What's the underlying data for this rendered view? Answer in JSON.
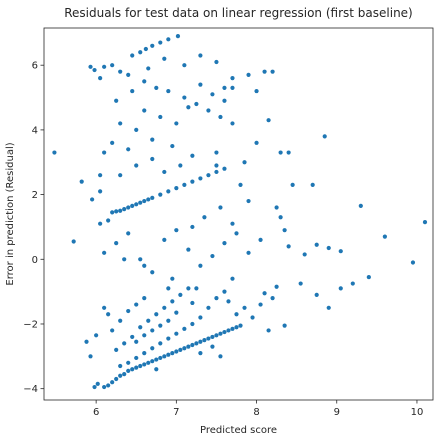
{
  "chart_data": {
    "type": "scatter",
    "title": "Residuals for test data on linear regression (first baseline)",
    "xlabel": "Predicted score",
    "ylabel": "Error in prediction (Residual)",
    "xlim": [
      5.35,
      10.2
    ],
    "ylim": [
      -4.35,
      7.15
    ],
    "xticks": [
      6,
      7,
      8,
      9,
      10
    ],
    "yticks": [
      -4,
      -2,
      0,
      2,
      4,
      6
    ],
    "grid": false,
    "marker_color": "#1f77b4",
    "points": [
      [
        5.48,
        3.3
      ],
      [
        5.72,
        0.55
      ],
      [
        5.82,
        2.4
      ],
      [
        5.88,
        -2.55
      ],
      [
        5.93,
        -3.0
      ],
      [
        5.93,
        5.95
      ],
      [
        5.98,
        5.85
      ],
      [
        6.05,
        5.6
      ],
      [
        6.1,
        3.3
      ],
      [
        6.05,
        2.1
      ],
      [
        5.95,
        1.85
      ],
      [
        6.05,
        1.1
      ],
      [
        6.0,
        -2.35
      ],
      [
        5.98,
        -3.95
      ],
      [
        6.02,
        -3.85
      ],
      [
        6.1,
        -3.95
      ],
      [
        6.15,
        -3.9
      ],
      [
        6.2,
        -3.8
      ],
      [
        6.25,
        -3.7
      ],
      [
        6.3,
        -3.6
      ],
      [
        6.35,
        -3.55
      ],
      [
        6.4,
        -3.45
      ],
      [
        6.45,
        -3.4
      ],
      [
        6.5,
        -3.35
      ],
      [
        6.55,
        -3.3
      ],
      [
        6.6,
        -3.25
      ],
      [
        6.65,
        -3.2
      ],
      [
        6.7,
        -3.15
      ],
      [
        6.75,
        -3.1
      ],
      [
        6.8,
        -3.05
      ],
      [
        6.85,
        -3.0
      ],
      [
        6.9,
        -2.95
      ],
      [
        6.95,
        -2.9
      ],
      [
        7.0,
        -2.85
      ],
      [
        7.05,
        -2.8
      ],
      [
        7.1,
        -2.75
      ],
      [
        7.15,
        -2.7
      ],
      [
        7.2,
        -2.65
      ],
      [
        7.25,
        -2.6
      ],
      [
        7.3,
        -2.55
      ],
      [
        7.35,
        -2.5
      ],
      [
        7.4,
        -2.45
      ],
      [
        7.45,
        -2.4
      ],
      [
        7.5,
        -2.35
      ],
      [
        7.55,
        -2.3
      ],
      [
        7.6,
        -2.25
      ],
      [
        7.65,
        -2.2
      ],
      [
        7.7,
        -2.15
      ],
      [
        7.75,
        -2.1
      ],
      [
        7.8,
        -2.05
      ],
      [
        6.3,
        -3.3
      ],
      [
        6.4,
        -3.2
      ],
      [
        6.5,
        -3.05
      ],
      [
        6.6,
        -2.9
      ],
      [
        6.7,
        -2.75
      ],
      [
        6.8,
        -2.6
      ],
      [
        6.9,
        -2.45
      ],
      [
        7.0,
        -2.3
      ],
      [
        7.1,
        -2.15
      ],
      [
        7.2,
        -2.0
      ],
      [
        6.25,
        -2.8
      ],
      [
        6.35,
        -2.6
      ],
      [
        6.45,
        -2.4
      ],
      [
        6.55,
        -2.1
      ],
      [
        6.65,
        -1.9
      ],
      [
        6.75,
        -1.7
      ],
      [
        6.85,
        -1.5
      ],
      [
        6.95,
        -1.3
      ],
      [
        7.05,
        -1.1
      ],
      [
        7.15,
        -0.9
      ],
      [
        6.2,
        -2.2
      ],
      [
        6.3,
        -1.9
      ],
      [
        6.4,
        -1.6
      ],
      [
        6.5,
        -1.4
      ],
      [
        6.6,
        -1.2
      ],
      [
        7.3,
        -1.8
      ],
      [
        7.4,
        -1.5
      ],
      [
        7.5,
        -1.2
      ],
      [
        7.6,
        -1.0
      ],
      [
        7.7,
        -0.6
      ],
      [
        6.1,
        -1.5
      ],
      [
        6.15,
        -1.7
      ],
      [
        6.7,
        -2.2
      ],
      [
        6.9,
        -1.9
      ],
      [
        7.3,
        -2.9
      ],
      [
        7.55,
        -3.0
      ],
      [
        7.75,
        -1.7
      ],
      [
        7.85,
        -1.5
      ],
      [
        8.05,
        -1.4
      ],
      [
        6.9,
        -0.9
      ],
      [
        6.5,
        -2.55
      ],
      [
        6.6,
        -2.35
      ],
      [
        6.8,
        -2.05
      ],
      [
        7.0,
        -1.65
      ],
      [
        7.2,
        -1.35
      ],
      [
        6.2,
        1.45
      ],
      [
        6.3,
        1.5
      ],
      [
        6.4,
        1.6
      ],
      [
        6.5,
        1.7
      ],
      [
        6.6,
        1.8
      ],
      [
        6.7,
        1.9
      ],
      [
        6.8,
        2.0
      ],
      [
        6.9,
        2.1
      ],
      [
        7.0,
        2.2
      ],
      [
        7.1,
        2.3
      ],
      [
        7.2,
        2.4
      ],
      [
        7.3,
        2.5
      ],
      [
        7.4,
        2.6
      ],
      [
        7.5,
        2.7
      ],
      [
        7.6,
        2.8
      ],
      [
        6.25,
        1.48
      ],
      [
        6.35,
        1.55
      ],
      [
        6.45,
        1.65
      ],
      [
        6.55,
        1.75
      ],
      [
        6.65,
        1.85
      ],
      [
        6.1,
        5.95
      ],
      [
        6.2,
        6.0
      ],
      [
        6.3,
        5.8
      ],
      [
        6.45,
        6.3
      ],
      [
        6.55,
        6.4
      ],
      [
        6.62,
        6.5
      ],
      [
        6.7,
        6.6
      ],
      [
        6.8,
        6.7
      ],
      [
        6.9,
        6.8
      ],
      [
        7.02,
        6.9
      ],
      [
        6.4,
        5.7
      ],
      [
        6.6,
        5.5
      ],
      [
        6.75,
        5.3
      ],
      [
        6.9,
        5.2
      ],
      [
        7.1,
        5.0
      ],
      [
        7.25,
        4.8
      ],
      [
        7.4,
        4.6
      ],
      [
        7.55,
        4.4
      ],
      [
        7.7,
        4.2
      ],
      [
        7.9,
        5.7
      ],
      [
        8.1,
        5.8
      ],
      [
        8.2,
        5.8
      ],
      [
        7.6,
        5.3
      ],
      [
        7.7,
        5.3
      ],
      [
        7.5,
        3.3
      ],
      [
        6.3,
        4.2
      ],
      [
        6.5,
        4.0
      ],
      [
        6.7,
        3.7
      ],
      [
        6.95,
        3.5
      ],
      [
        7.2,
        3.2
      ],
      [
        7.5,
        2.9
      ],
      [
        7.8,
        2.3
      ],
      [
        7.9,
        1.8
      ],
      [
        8.3,
        3.3
      ],
      [
        8.4,
        3.3
      ],
      [
        8.45,
        2.3
      ],
      [
        8.7,
        2.3
      ],
      [
        8.85,
        3.8
      ],
      [
        8.25,
        1.6
      ],
      [
        8.3,
        1.3
      ],
      [
        8.35,
        0.9
      ],
      [
        8.4,
        0.4
      ],
      [
        8.6,
        0.15
      ],
      [
        8.75,
        0.45
      ],
      [
        8.9,
        0.35
      ],
      [
        9.05,
        0.25
      ],
      [
        9.3,
        1.65
      ],
      [
        9.6,
        0.7
      ],
      [
        9.95,
        -0.1
      ],
      [
        10.1,
        1.15
      ],
      [
        9.4,
        -0.55
      ],
      [
        9.2,
        -0.75
      ],
      [
        9.05,
        -0.9
      ],
      [
        8.9,
        -1.5
      ],
      [
        8.75,
        -1.1
      ],
      [
        8.55,
        -0.75
      ],
      [
        8.25,
        -0.85
      ],
      [
        8.1,
        -1.05
      ],
      [
        7.95,
        -1.8
      ],
      [
        8.2,
        -1.2
      ],
      [
        6.1,
        0.2
      ],
      [
        6.25,
        0.5
      ],
      [
        6.4,
        0.8
      ],
      [
        6.55,
        0.0
      ],
      [
        6.7,
        -0.4
      ],
      [
        6.85,
        0.6
      ],
      [
        7.0,
        0.9
      ],
      [
        7.15,
        0.3
      ],
      [
        7.3,
        -0.2
      ],
      [
        7.45,
        0.1
      ],
      [
        7.6,
        0.5
      ],
      [
        7.75,
        0.8
      ],
      [
        7.9,
        0.2
      ],
      [
        8.05,
        0.6
      ],
      [
        6.3,
        2.6
      ],
      [
        6.5,
        2.9
      ],
      [
        6.7,
        3.1
      ],
      [
        6.85,
        2.7
      ],
      [
        7.05,
        2.9
      ],
      [
        7.2,
        1.0
      ],
      [
        7.35,
        1.3
      ],
      [
        7.55,
        1.6
      ],
      [
        7.7,
        1.1
      ],
      [
        6.2,
        3.6
      ],
      [
        6.4,
        3.4
      ],
      [
        6.6,
        4.6
      ],
      [
        6.8,
        4.4
      ],
      [
        7.0,
        4.2
      ],
      [
        7.15,
        4.7
      ],
      [
        7.3,
        5.4
      ],
      [
        7.45,
        5.1
      ],
      [
        7.6,
        4.9
      ],
      [
        6.25,
        4.9
      ],
      [
        6.45,
        5.2
      ],
      [
        6.65,
        5.9
      ],
      [
        6.85,
        6.2
      ],
      [
        7.1,
        6.0
      ],
      [
        7.3,
        6.3
      ],
      [
        7.5,
        6.1
      ],
      [
        7.7,
        5.6
      ],
      [
        8.0,
        5.2
      ],
      [
        8.15,
        4.3
      ],
      [
        8.0,
        3.6
      ],
      [
        7.85,
        3.0
      ],
      [
        6.05,
        2.6
      ],
      [
        6.15,
        1.2
      ],
      [
        6.35,
        0.0
      ],
      [
        6.6,
        -0.2
      ],
      [
        6.95,
        -0.6
      ],
      [
        7.25,
        -0.9
      ],
      [
        7.65,
        -1.3
      ],
      [
        8.15,
        -2.2
      ],
      [
        8.35,
        -2.05
      ],
      [
        7.45,
        -2.7
      ],
      [
        6.75,
        -3.4
      ]
    ]
  }
}
